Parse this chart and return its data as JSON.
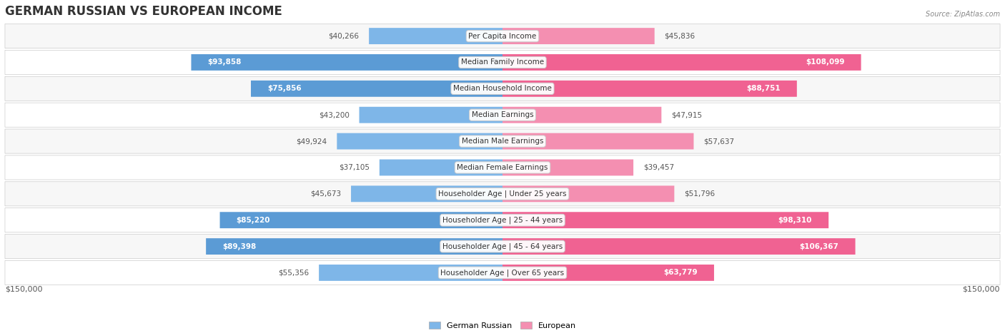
{
  "title": "GERMAN RUSSIAN VS EUROPEAN INCOME",
  "source": "Source: ZipAtlas.com",
  "categories": [
    "Per Capita Income",
    "Median Family Income",
    "Median Household Income",
    "Median Earnings",
    "Median Male Earnings",
    "Median Female Earnings",
    "Householder Age | Under 25 years",
    "Householder Age | 25 - 44 years",
    "Householder Age | 45 - 64 years",
    "Householder Age | Over 65 years"
  ],
  "german_russian": [
    40266,
    93858,
    75856,
    43200,
    49924,
    37105,
    45673,
    85220,
    89398,
    55356
  ],
  "european": [
    45836,
    108099,
    88751,
    47915,
    57637,
    39457,
    51796,
    98310,
    106367,
    63779
  ],
  "max_val": 150000,
  "color_german": "#7EB6E8",
  "color_european": "#F48FB1",
  "color_german_dark": "#5B9BD5",
  "color_european_dark": "#F06292",
  "color_label_box": "#F5F5F5",
  "color_bg_row_odd": "#F7F7F7",
  "color_bg_row_even": "#FFFFFF",
  "color_bar_bg": "#E8E8E8",
  "legend_german": "German Russian",
  "legend_european": "European",
  "xlabel_left": "$150,000",
  "xlabel_right": "$150,000"
}
